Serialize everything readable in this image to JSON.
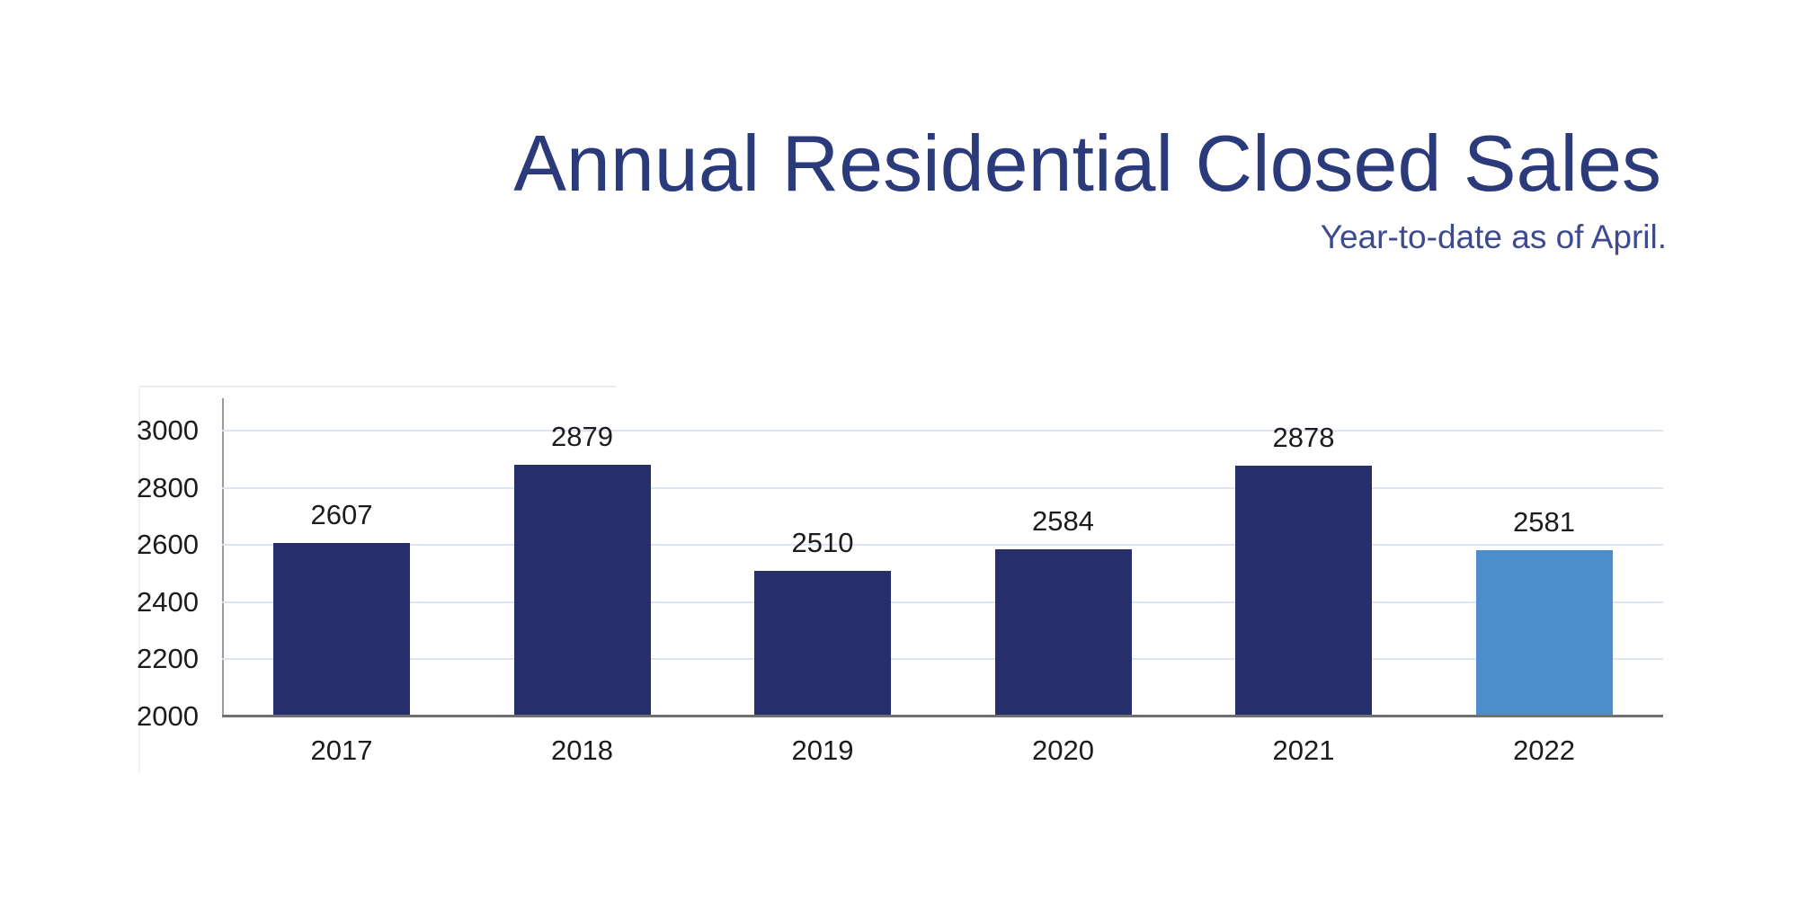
{
  "header": {
    "title": "Annual Residential Closed Sales",
    "subtitle": "Year-to-date as of April."
  },
  "chart_data": {
    "type": "bar",
    "title": "Annual Residential Closed Sales",
    "subtitle": "Year-to-date as of April.",
    "categories": [
      "2017",
      "2018",
      "2019",
      "2020",
      "2021",
      "2022"
    ],
    "values": [
      2607,
      2879,
      2510,
      2584,
      2878,
      2581
    ],
    "xlabel": "",
    "ylabel": "",
    "ylim": [
      2000,
      3113
    ],
    "yticks": [
      2000,
      2200,
      2400,
      2600,
      2800,
      3000
    ],
    "grid": true,
    "legend": false,
    "data_labels_shown": true,
    "colors": {
      "bar": "#262F6B",
      "highlight_bar": "#4C8DCC",
      "title": "#2B3A7A",
      "subtitle": "#3D4B8E",
      "labels": "#1C1C1C",
      "gridline": "#DEE4F0",
      "x_axis_line": "#707070",
      "y_axis_line": "#999999"
    },
    "highlight_index": 5
  }
}
